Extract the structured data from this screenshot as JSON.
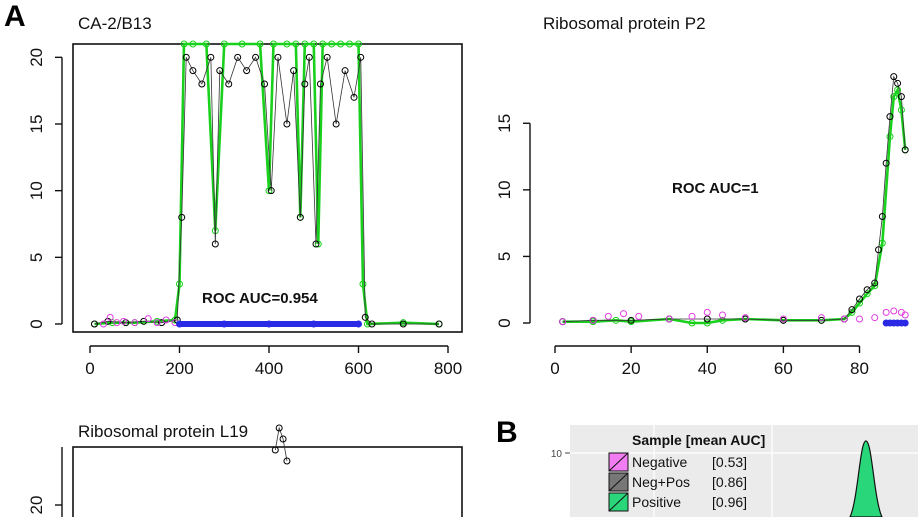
{
  "figure": {
    "panel_a_label": "A",
    "panel_b_label": "B"
  },
  "chart_data": [
    {
      "type": "line",
      "title": "CA-2/B13",
      "xlim": [
        0,
        800
      ],
      "ylim": [
        0,
        21
      ],
      "x_ticks": [
        0,
        200,
        400,
        600,
        800
      ],
      "y_ticks": [
        0,
        5,
        10,
        15,
        20
      ],
      "annotation": "ROC AUC=0.954",
      "series": [
        {
          "color": "#19d11c",
          "x": [
            10,
            50,
            100,
            150,
            190,
            200,
            210,
            230,
            260,
            280,
            300,
            340,
            380,
            400,
            410,
            440,
            460,
            470,
            480,
            500,
            510,
            520,
            540,
            560,
            580,
            600,
            610,
            620,
            700,
            780
          ],
          "y": [
            0,
            0.1,
            0.1,
            0.2,
            0.3,
            3,
            21,
            21,
            21,
            7,
            21,
            21,
            21,
            10,
            21,
            21,
            21,
            8,
            21,
            21,
            6,
            21,
            21,
            21,
            21,
            21,
            3,
            0,
            0.1,
            0
          ]
        },
        {
          "color": "#000000",
          "x": [
            10,
            40,
            80,
            120,
            160,
            195,
            205,
            215,
            230,
            250,
            270,
            280,
            290,
            310,
            330,
            350,
            370,
            390,
            405,
            420,
            440,
            455,
            470,
            480,
            490,
            505,
            515,
            530,
            550,
            570,
            590,
            605,
            615,
            630,
            700,
            780
          ],
          "y": [
            0,
            0.2,
            0.1,
            0.2,
            0.1,
            0.3,
            8,
            20,
            19,
            18,
            20,
            6,
            19,
            18,
            20,
            19,
            20,
            18,
            10,
            20,
            15,
            19,
            8,
            18,
            20,
            6,
            18,
            20,
            15,
            19,
            17,
            20,
            0.5,
            0,
            0,
            0
          ]
        },
        {
          "color": "#e23be2",
          "x": [
            30,
            45,
            60,
            75,
            100,
            130,
            150,
            170,
            190
          ],
          "y": [
            0,
            0.5,
            0.1,
            0.2,
            0.1,
            0.4,
            0.1,
            0.3,
            0.1
          ]
        },
        {
          "color": "#2a2ae6",
          "x": [
            200,
            300,
            400,
            500,
            600
          ],
          "y": [
            0,
            0,
            0,
            0,
            0
          ]
        }
      ]
    },
    {
      "type": "line",
      "title": "Ribosomal protein P2",
      "xlim": [
        0,
        93
      ],
      "ylim": [
        0,
        19
      ],
      "x_ticks": [
        0,
        20,
        40,
        60,
        80
      ],
      "y_ticks": [
        0,
        5,
        10,
        15
      ],
      "annotation": "ROC AUC=1",
      "series": [
        {
          "color": "#19d11c",
          "x": [
            2,
            10,
            16,
            20,
            30,
            36,
            40,
            44,
            50,
            60,
            70,
            76,
            78,
            80,
            82,
            84,
            86,
            88,
            89,
            90,
            91,
            92
          ],
          "y": [
            0.1,
            0.1,
            0.2,
            0.1,
            0.3,
            0,
            0,
            0.2,
            0.3,
            0.2,
            0.2,
            0.3,
            0.8,
            1.5,
            2.2,
            2.8,
            6,
            14,
            17,
            17.5,
            16,
            13
          ]
        },
        {
          "color": "#000000",
          "x": [
            2,
            10,
            20,
            30,
            40,
            50,
            60,
            70,
            76,
            78,
            80,
            82,
            84,
            85,
            86,
            87,
            88,
            89,
            90,
            91,
            92
          ],
          "y": [
            0.1,
            0.2,
            0.2,
            0.3,
            0.3,
            0.3,
            0.2,
            0.2,
            0.3,
            1,
            1.8,
            2.5,
            3,
            5.5,
            8,
            12,
            15.5,
            18.5,
            18,
            17,
            13
          ]
        },
        {
          "color": "#e23be2",
          "x": [
            2,
            10,
            14,
            18,
            22,
            30,
            36,
            40,
            44,
            50,
            60,
            70,
            76,
            80,
            84,
            87,
            89,
            91,
            92
          ],
          "y": [
            0.1,
            0.2,
            0.5,
            0.7,
            0.5,
            0.3,
            0.5,
            0.8,
            0.6,
            0.4,
            0.3,
            0.4,
            0.3,
            0.3,
            0.4,
            0.8,
            0.9,
            0.8,
            0.6
          ]
        },
        {
          "color": "#2a2ae6",
          "x": [
            87,
            88,
            89,
            90,
            91,
            92
          ],
          "y": [
            0,
            0,
            0,
            0,
            0,
            0
          ]
        }
      ]
    },
    {
      "type": "line",
      "title": "Ribosomal protein L19",
      "y_ticks": [
        20
      ],
      "series": [
        {
          "color": "#000000",
          "x": [
            0.52,
            0.53,
            0.54,
            0.55
          ],
          "y": [
            25,
            27,
            26,
            24
          ]
        }
      ]
    },
    {
      "type": "area",
      "y_ticks": [
        10.0
      ],
      "legend": {
        "title": "Sample [mean AUC]",
        "placement": "top-left",
        "entries": [
          {
            "label": "Negative",
            "value": "[0.53]",
            "color": "#f27df2"
          },
          {
            "label": "Neg+Pos",
            "value": "[0.86]",
            "color": "#777777"
          },
          {
            "label": "Positive",
            "value": "[0.96]",
            "color": "#2ad67a"
          }
        ]
      },
      "peak_color": "#2ad67a"
    }
  ]
}
